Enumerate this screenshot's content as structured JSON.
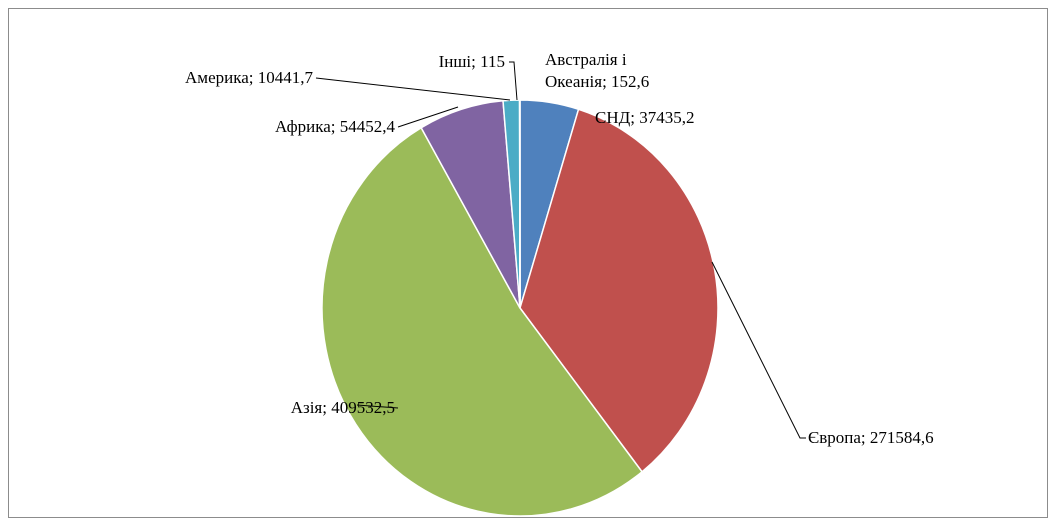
{
  "chart_data": {
    "type": "pie",
    "categories": [
      "СНД",
      "Європа",
      "Азія",
      "Африка",
      "Америка",
      "Інші",
      "Австралія і Океанія"
    ],
    "values": [
      37435.2,
      271584.6,
      409532.5,
      54452.4,
      10441.7,
      115,
      152.6
    ],
    "value_labels": [
      "37435,2",
      "271584,6",
      "409532,5",
      "54452,4",
      "10441,7",
      "115",
      "152,6"
    ],
    "label_separator": "; ",
    "colors": [
      "#4f81bd",
      "#c0504d",
      "#9bbb59",
      "#8064a2",
      "#4bacc6",
      "#f79646",
      "#2c4d75"
    ]
  }
}
